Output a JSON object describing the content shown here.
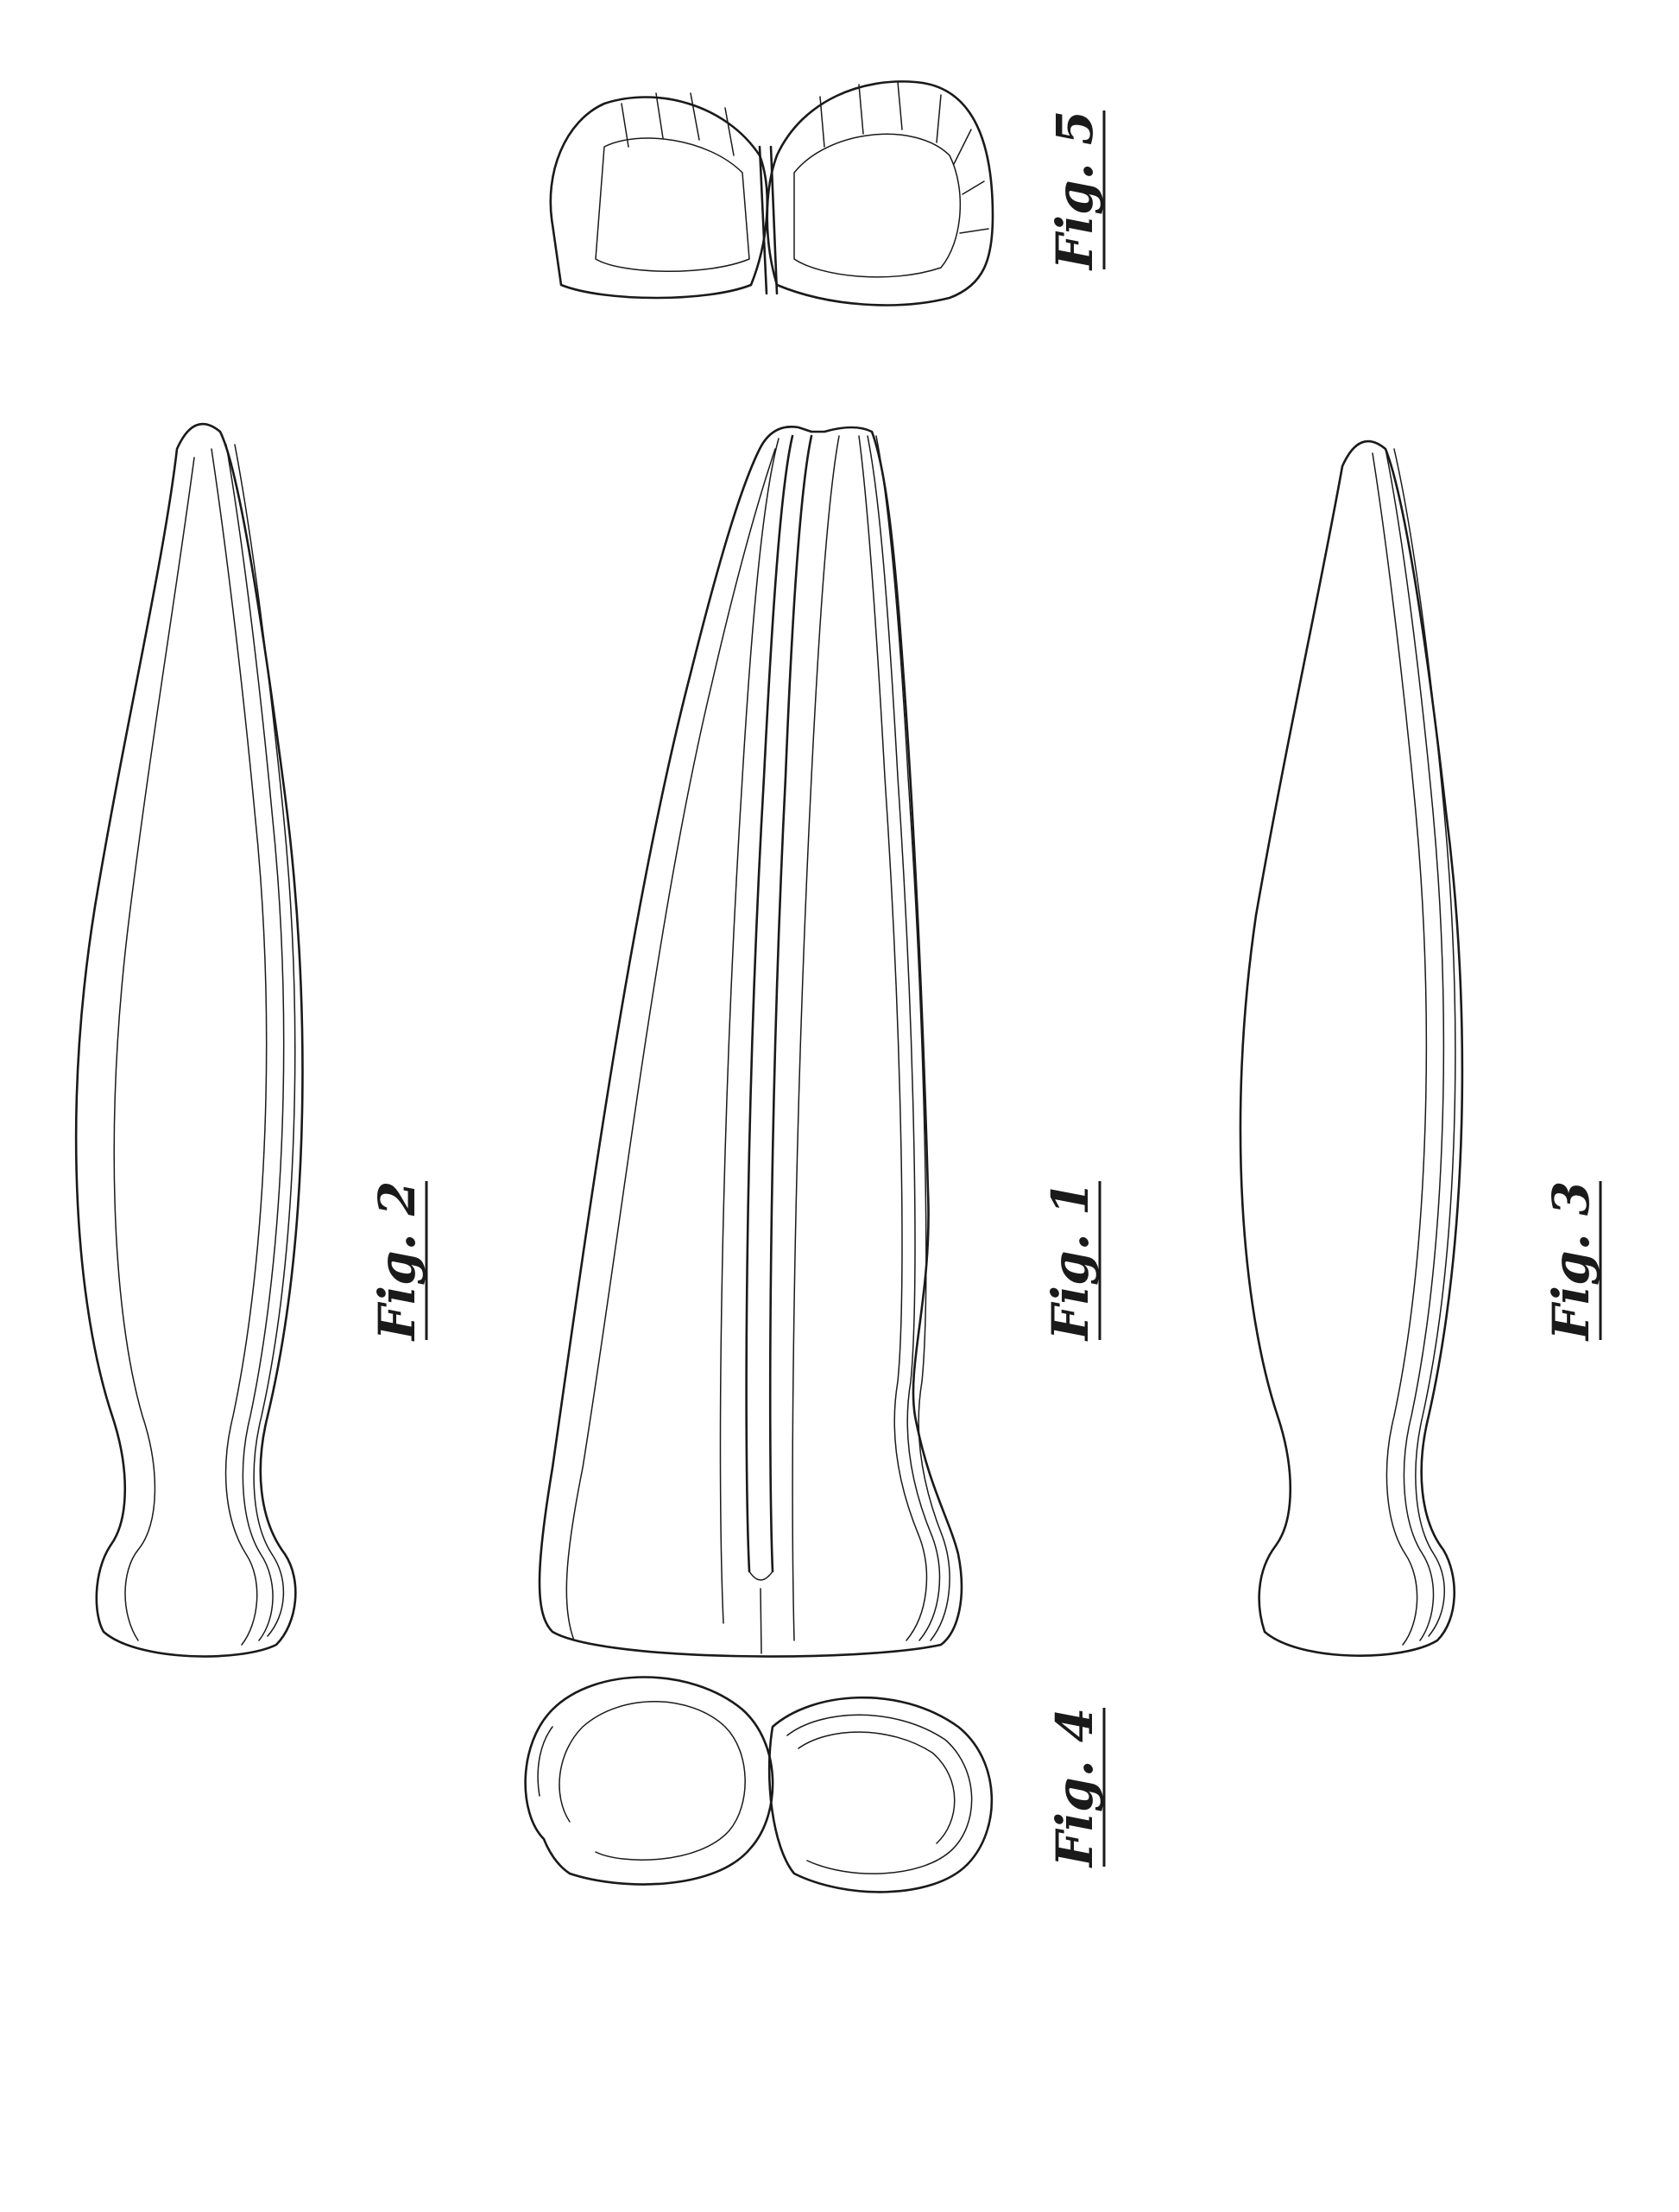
{
  "sheet": {
    "figures": [
      {
        "id": "fig1",
        "label": "Fig. 1"
      },
      {
        "id": "fig2",
        "label": "Fig. 2"
      },
      {
        "id": "fig3",
        "label": "Fig. 3"
      },
      {
        "id": "fig4",
        "label": "Fig. 4"
      },
      {
        "id": "fig5",
        "label": "Fig. 5"
      }
    ]
  }
}
